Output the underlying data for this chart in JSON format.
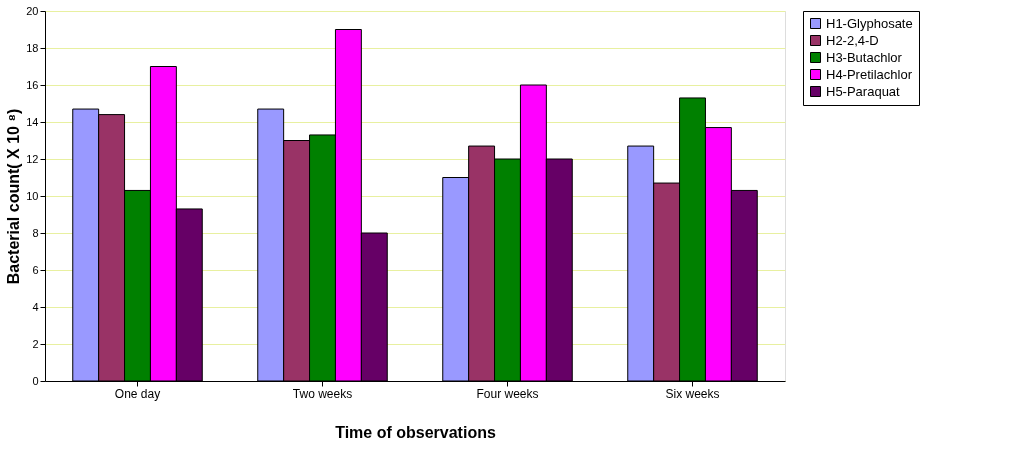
{
  "chart_data": {
    "type": "bar",
    "xlabel": "Time of observations",
    "ylabel": "Bacterial count( X 10 ⁸)",
    "categories": [
      "One day",
      "Two weeks",
      "Four weeks",
      "Six weeks"
    ],
    "series": [
      {
        "name": "H1-Glyphosate",
        "color": "#9999ff",
        "values": [
          14.7,
          14.7,
          11.0,
          12.7
        ]
      },
      {
        "name": "H2-2,4-D",
        "color": "#993366",
        "values": [
          14.4,
          13.0,
          12.7,
          10.7
        ]
      },
      {
        "name": "H3-Butachlor",
        "color": "#008000",
        "values": [
          10.3,
          13.3,
          12.0,
          15.3
        ]
      },
      {
        "name": "H4-Pretilachlor",
        "color": "#ff00ff",
        "values": [
          17.0,
          19.0,
          16.0,
          13.7
        ]
      },
      {
        "name": "H5-Paraquat",
        "color": "#660066",
        "values": [
          9.3,
          8.0,
          12.0,
          10.3
        ]
      }
    ],
    "ylim": [
      0,
      20
    ],
    "yticks": [
      0,
      2,
      4,
      6,
      8,
      10,
      12,
      14,
      16,
      18,
      20
    ],
    "grid": "y",
    "legend": "right"
  }
}
